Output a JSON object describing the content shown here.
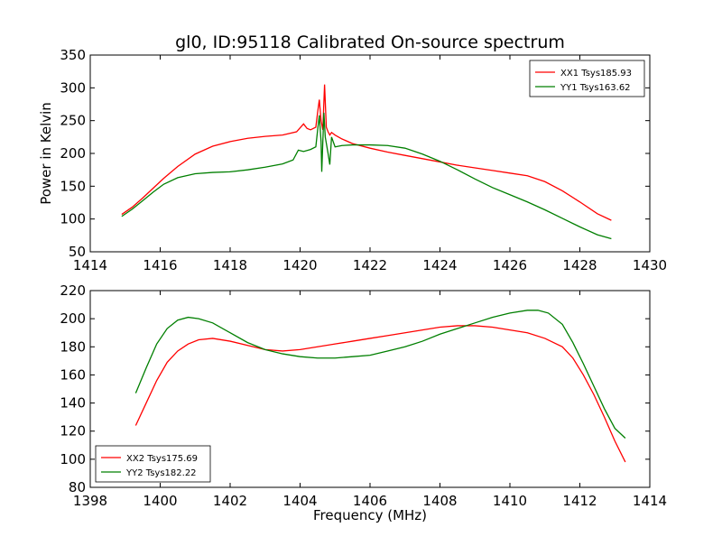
{
  "figure": {
    "title": "gl0, ID:95118 Calibrated On-source spectrum",
    "xlabel": "Frequency (MHz)"
  },
  "chart_data": [
    {
      "type": "line",
      "title": "gl0, ID:95118 Calibrated On-source spectrum",
      "xlabel": "",
      "ylabel": "Power in Kelvin",
      "xlim": [
        1414,
        1430
      ],
      "ylim": [
        50,
        350
      ],
      "xticks": [
        1414,
        1416,
        1418,
        1420,
        1422,
        1424,
        1426,
        1428,
        1430
      ],
      "yticks": [
        50,
        100,
        150,
        200,
        250,
        300,
        350
      ],
      "grid": false,
      "legend_position": "top-right",
      "series": [
        {
          "name": "XX1 Tsys185.93",
          "color": "#ff0000",
          "x": [
            1414.9,
            1415.2,
            1415.5,
            1415.8,
            1416.1,
            1416.5,
            1417.0,
            1417.5,
            1418.0,
            1418.5,
            1419.0,
            1419.5,
            1419.9,
            1420.1,
            1420.2,
            1420.3,
            1420.45,
            1420.5,
            1420.55,
            1420.6,
            1420.65,
            1420.7,
            1420.75,
            1420.8,
            1420.85,
            1420.9,
            1421.0,
            1421.2,
            1421.5,
            1422.0,
            1422.5,
            1423.0,
            1423.5,
            1424.0,
            1424.5,
            1425.0,
            1425.5,
            1426.0,
            1426.5,
            1427.0,
            1427.5,
            1428.0,
            1428.5,
            1428.9
          ],
          "y": [
            107,
            118,
            132,
            147,
            162,
            180,
            199,
            211,
            218,
            223,
            226,
            228,
            233,
            245,
            238,
            236,
            240,
            262,
            282,
            250,
            236,
            305,
            240,
            233,
            228,
            232,
            228,
            222,
            215,
            208,
            202,
            197,
            192,
            187,
            182,
            178,
            174,
            170,
            166,
            157,
            143,
            126,
            108,
            98
          ]
        },
        {
          "name": "YY1 Tsys163.62",
          "color": "#007f00",
          "x": [
            1414.9,
            1415.2,
            1415.5,
            1415.8,
            1416.1,
            1416.5,
            1417.0,
            1417.5,
            1418.0,
            1418.5,
            1419.0,
            1419.5,
            1419.8,
            1419.95,
            1420.1,
            1420.3,
            1420.45,
            1420.5,
            1420.55,
            1420.6,
            1420.62,
            1420.68,
            1420.72,
            1420.8,
            1420.85,
            1420.9,
            1421.0,
            1421.2,
            1421.5,
            1422.0,
            1422.5,
            1423.0,
            1423.5,
            1424.0,
            1424.5,
            1425.0,
            1425.5,
            1426.0,
            1426.5,
            1427.0,
            1427.5,
            1428.0,
            1428.5,
            1428.9
          ],
          "y": [
            104,
            115,
            128,
            141,
            153,
            163,
            169,
            171,
            172,
            175,
            179,
            184,
            190,
            205,
            203,
            206,
            210,
            235,
            258,
            218,
            172,
            262,
            225,
            200,
            183,
            225,
            210,
            212,
            213,
            213,
            212,
            208,
            199,
            188,
            175,
            161,
            148,
            137,
            126,
            114,
            101,
            88,
            76,
            70
          ]
        }
      ]
    },
    {
      "type": "line",
      "title": "",
      "xlabel": "Frequency (MHz)",
      "ylabel": "",
      "xlim": [
        1398,
        1414
      ],
      "ylim": [
        80,
        220
      ],
      "xticks": [
        1398,
        1400,
        1402,
        1404,
        1406,
        1408,
        1410,
        1412,
        1414
      ],
      "yticks": [
        80,
        100,
        120,
        140,
        160,
        180,
        200,
        220
      ],
      "grid": false,
      "legend_position": "bottom-left",
      "series": [
        {
          "name": "XX2 Tsys175.69",
          "color": "#ff0000",
          "x": [
            1399.3,
            1399.6,
            1399.9,
            1400.2,
            1400.5,
            1400.8,
            1401.1,
            1401.5,
            1402.0,
            1402.5,
            1403.0,
            1403.5,
            1404.0,
            1404.5,
            1405.0,
            1405.5,
            1406.0,
            1406.5,
            1407.0,
            1407.5,
            1408.0,
            1408.5,
            1409.0,
            1409.5,
            1410.0,
            1410.5,
            1411.0,
            1411.5,
            1411.8,
            1412.1,
            1412.4,
            1412.7,
            1413.0,
            1413.3
          ],
          "y": [
            124,
            140,
            156,
            169,
            177,
            182,
            185,
            186,
            184,
            181,
            178,
            177,
            178,
            180,
            182,
            184,
            186,
            188,
            190,
            192,
            194,
            195,
            195,
            194,
            192,
            190,
            186,
            180,
            172,
            160,
            146,
            130,
            113,
            98
          ]
        },
        {
          "name": "YY2 Tsys182.22",
          "color": "#007f00",
          "x": [
            1399.3,
            1399.6,
            1399.9,
            1400.2,
            1400.5,
            1400.8,
            1401.1,
            1401.5,
            1402.0,
            1402.5,
            1403.0,
            1403.5,
            1404.0,
            1404.5,
            1405.0,
            1405.5,
            1406.0,
            1406.5,
            1407.0,
            1407.5,
            1408.0,
            1408.5,
            1409.0,
            1409.5,
            1410.0,
            1410.5,
            1410.8,
            1411.1,
            1411.5,
            1411.8,
            1412.1,
            1412.4,
            1412.7,
            1413.0,
            1413.3
          ],
          "y": [
            147,
            165,
            182,
            193,
            199,
            201,
            200,
            197,
            190,
            183,
            178,
            175,
            173,
            172,
            172,
            173,
            174,
            177,
            180,
            184,
            189,
            193,
            197,
            201,
            204,
            206,
            206,
            204,
            196,
            183,
            168,
            152,
            136,
            122,
            115
          ]
        }
      ]
    }
  ]
}
